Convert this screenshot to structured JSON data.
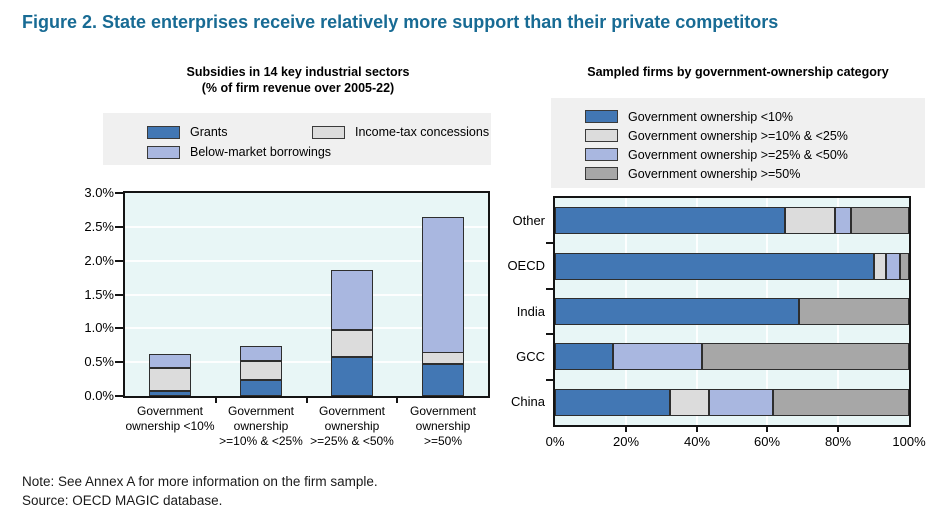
{
  "page": {
    "title": "Figure 2. State enterprises receive relatively more support than their private competitors",
    "title_color": "#186b94",
    "note": "Note: See Annex A for more information on the firm sample.",
    "source": "Source: OECD MAGIC database."
  },
  "colors": {
    "blue": "#4277b4",
    "light_gray": "#dcdcdc",
    "periwinkle": "#a9b7e0",
    "gray": "#a7a7a7",
    "plot_background": "#e8f6f6",
    "legend_background": "#f0f0f0",
    "title_blue": "#186b94"
  },
  "left_chart": {
    "title_line1": "Subsidies in 14 key industrial sectors",
    "title_line2": "(% of firm revenue over 2005-22)",
    "yticks": [
      "3.0%",
      "2.5%",
      "2.0%",
      "1.5%",
      "1.0%",
      "0.5%",
      "0.0%"
    ],
    "categories_display": [
      "Government\nownership <10%",
      "Government\nownership\n>=10% & <25%",
      "Government\nownership\n>=25% & <50%",
      "Government\nownership\n>=50%"
    ]
  },
  "right_chart": {
    "title": "Sampled firms by government-ownership category",
    "xticks": [
      "0%",
      "20%",
      "40%",
      "60%",
      "80%",
      "100%"
    ],
    "categories": [
      "Other",
      "OECD",
      "India",
      "GCC",
      "China"
    ]
  },
  "chart_data": [
    {
      "type": "bar",
      "orientation": "vertical",
      "stacked": true,
      "title": "Subsidies in 14 key industrial sectors (% of firm revenue over 2005-22)",
      "categories": [
        "Government ownership <10%",
        "Government ownership >=10% & <25%",
        "Government ownership >=25% & <50%",
        "Government ownership >=50%"
      ],
      "series": [
        {
          "name": "Grants",
          "color": "#4277b4",
          "values": [
            0.07,
            0.23,
            0.57,
            0.47
          ]
        },
        {
          "name": "Income-tax concessions",
          "color": "#dcdcdc",
          "values": [
            0.34,
            0.28,
            0.4,
            0.17
          ]
        },
        {
          "name": "Below-market borrowings",
          "color": "#a9b7e0",
          "values": [
            0.2,
            0.22,
            0.88,
            2.01
          ]
        }
      ],
      "stack_totals": [
        0.61,
        0.73,
        1.85,
        2.65
      ],
      "xlabel": "",
      "ylabel": "% of firm revenue",
      "ylim": [
        0,
        3.0
      ],
      "ytick_step": 0.5,
      "ytick_format": "percent-1-decimal",
      "grid": "horizontal-white",
      "legend_position": "top"
    },
    {
      "type": "bar",
      "orientation": "horizontal",
      "stacked": true,
      "stacked_to_100": true,
      "title": "Sampled firms by government-ownership category",
      "categories": [
        "Other",
        "OECD",
        "India",
        "GCC",
        "China"
      ],
      "series": [
        {
          "name": "Government ownership <10%",
          "color": "#4277b4",
          "values": [
            65,
            90,
            69,
            16.5,
            32.5
          ]
        },
        {
          "name": "Government ownership >=10% & <25%",
          "color": "#dcdcdc",
          "values": [
            14,
            3.5,
            0,
            0,
            11
          ]
        },
        {
          "name": "Government ownership >=25% & <50%",
          "color": "#a9b7e0",
          "values": [
            4.5,
            4,
            0,
            25,
            18
          ]
        },
        {
          "name": "Government ownership >=50%",
          "color": "#a7a7a7",
          "values": [
            16.5,
            2.5,
            31,
            58.5,
            38.5
          ]
        }
      ],
      "xlim": [
        0,
        100
      ],
      "xtick_step": 20,
      "xtick_format": "percent-0-decimal",
      "grid": "vertical-white",
      "legend_position": "top"
    }
  ]
}
